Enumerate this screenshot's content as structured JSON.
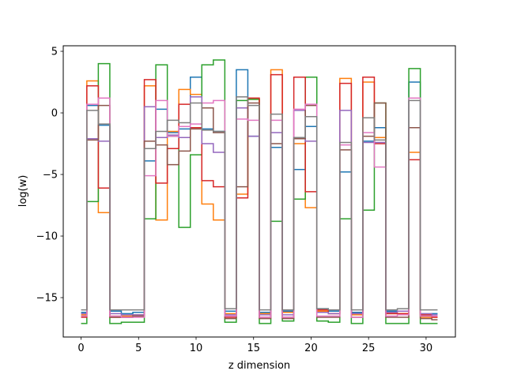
{
  "chart_data": {
    "type": "line",
    "drawstyle": "steps-mid",
    "xlabel": "z dimension",
    "ylabel": "log(w)",
    "xlim": [
      -1.55,
      32.55
    ],
    "ylim": [
      -18.2,
      5.45
    ],
    "xticks": [
      0,
      5,
      10,
      15,
      20,
      25,
      30
    ],
    "yticks": [
      -15,
      -10,
      -5,
      0,
      5
    ],
    "xtick_labels": [
      "0",
      "5",
      "10",
      "15",
      "20",
      "25",
      "30"
    ],
    "ytick_labels": [
      "−15",
      "−10",
      "−5",
      "0",
      "5"
    ],
    "grid": false,
    "legend": false,
    "x": [
      0,
      1,
      2,
      3,
      4,
      5,
      6,
      7,
      8,
      9,
      10,
      11,
      12,
      13,
      14,
      15,
      16,
      17,
      18,
      19,
      20,
      21,
      22,
      23,
      24,
      25,
      26,
      27,
      28,
      29,
      30,
      31
    ],
    "series": [
      {
        "color": "#1f77b4",
        "values": [
          -16.2,
          0.6,
          -1.0,
          -16.1,
          -16.3,
          -16.2,
          -3.9,
          0.3,
          -1.6,
          -1.3,
          2.9,
          -1.3,
          -1.5,
          -16.1,
          3.5,
          -1.9,
          -16.2,
          -2.8,
          -16.1,
          -4.6,
          -1.1,
          -15.9,
          -16.1,
          -4.8,
          -16.2,
          -2.3,
          -1.2,
          -16.1,
          -16.1,
          2.5,
          -16.5,
          -16.3
        ]
      },
      {
        "color": "#ff7f0e",
        "values": [
          -16.4,
          2.6,
          -8.1,
          -16.5,
          -16.5,
          -16.4,
          2.2,
          -8.7,
          -1.5,
          1.9,
          1.5,
          -7.4,
          -8.7,
          -16.3,
          -6.6,
          1.1,
          -16.3,
          3.5,
          -16.2,
          -2.5,
          -7.7,
          -16.1,
          -16.3,
          2.8,
          -16.4,
          2.5,
          -2.0,
          -16.3,
          -16.3,
          -3.2,
          -16.6,
          -16.6
        ]
      },
      {
        "color": "#2ca02c",
        "values": [
          -17.1,
          -7.2,
          4.0,
          -17.1,
          -17.0,
          -17.0,
          -8.6,
          3.9,
          -1.9,
          -9.3,
          -3.4,
          3.9,
          4.3,
          -17.0,
          1.0,
          1.1,
          -17.1,
          -8.8,
          -16.9,
          -7.0,
          2.9,
          -16.9,
          -17.0,
          -8.6,
          -17.1,
          -7.9,
          0.8,
          -17.1,
          -17.1,
          3.6,
          -17.1,
          -17.1
        ]
      },
      {
        "color": "#d62728",
        "values": [
          -16.6,
          2.2,
          -6.1,
          -16.6,
          -16.6,
          -16.5,
          2.7,
          -5.7,
          -2.9,
          0.7,
          -1.2,
          -5.5,
          -6.0,
          -16.6,
          -6.9,
          1.2,
          -16.6,
          3.1,
          -16.6,
          2.9,
          -6.4,
          -16.0,
          -16.3,
          2.4,
          -16.3,
          2.9,
          -2.5,
          -16.3,
          -16.3,
          -3.8,
          -16.4,
          -16.6
        ]
      },
      {
        "color": "#9467bd",
        "values": [
          -16.3,
          -2.1,
          -2.3,
          -16.3,
          -16.4,
          -16.4,
          0.5,
          -2.0,
          -1.8,
          -2.0,
          1.3,
          -2.5,
          -3.2,
          -16.4,
          0.4,
          -1.9,
          -16.4,
          -1.6,
          -16.4,
          0.2,
          -2.3,
          -16.2,
          -16.3,
          0.2,
          -16.3,
          -2.4,
          -2.4,
          -16.2,
          -16.1,
          -1.2,
          -16.3,
          -16.4
        ]
      },
      {
        "color": "#8c564b",
        "values": [
          -16.5,
          -2.2,
          0.6,
          -16.6,
          -16.6,
          -16.5,
          -2.3,
          -2.6,
          -4.2,
          -3.1,
          -1.3,
          0.4,
          -1.6,
          -16.7,
          -6.0,
          0.8,
          -16.7,
          -2.5,
          -16.7,
          -2.1,
          0.6,
          -16.6,
          -16.6,
          -3.0,
          -16.6,
          -1.9,
          0.8,
          -16.6,
          -16.6,
          -1.2,
          -16.7,
          -16.8
        ]
      },
      {
        "color": "#e377c2",
        "values": [
          -16.5,
          0.7,
          1.2,
          -16.5,
          -16.6,
          -16.6,
          -5.1,
          1.0,
          -1.9,
          -1.1,
          -0.9,
          0.8,
          1.0,
          -16.5,
          -0.5,
          -0.6,
          -16.6,
          -0.6,
          -16.6,
          0.3,
          0.7,
          -16.5,
          -16.5,
          -2.6,
          -16.6,
          -1.6,
          -4.4,
          -16.5,
          -16.4,
          1.2,
          -16.5,
          -16.5
        ]
      },
      {
        "color": "#7f7f7f",
        "values": [
          -16.0,
          0.2,
          -0.9,
          -16.0,
          -16.0,
          -16.0,
          -2.9,
          -1.5,
          -0.6,
          -0.8,
          0.8,
          -1.4,
          -1.5,
          -15.9,
          1.3,
          0.6,
          -16.0,
          -0.1,
          -16.0,
          -2.0,
          -0.3,
          -15.9,
          -16.0,
          -2.4,
          -16.0,
          -0.4,
          -2.2,
          -16.0,
          -15.9,
          1.0,
          -16.0,
          -16.0
        ]
      }
    ]
  }
}
